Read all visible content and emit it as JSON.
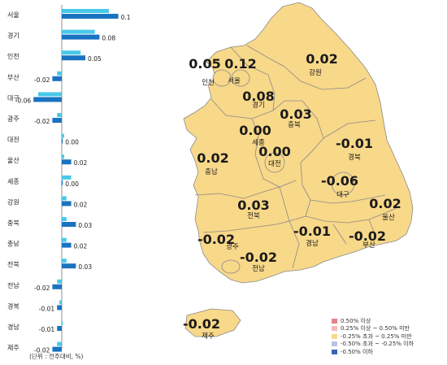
{
  "chart_data": {
    "type": "bar",
    "categories": [
      "서울",
      "경기",
      "인천",
      "부산",
      "대구",
      "광주",
      "대전",
      "울산",
      "세종",
      "강원",
      "충북",
      "충남",
      "전북",
      "전남",
      "경북",
      "경남",
      "제주"
    ],
    "series": [
      {
        "values": [
          0.12,
          0.08,
          0.05,
          -0.02,
          -0.06,
          -0.02,
          0.0,
          0.02,
          0.0,
          0.02,
          0.03,
          0.02,
          0.03,
          -0.02,
          -0.01,
          -0.01,
          -0.02
        ]
      }
    ],
    "previous_week_values": [
      0.1,
      0.07,
      0.04,
      -0.01,
      -0.05,
      -0.01,
      0.005,
      0.005,
      0.02,
      0.01,
      0.01,
      0.01,
      0.01,
      -0.01,
      -0.005,
      0.0,
      -0.01
    ],
    "unit_note": "(단위 : 전주대비, %)"
  },
  "map": {
    "regions": [
      {
        "id": "incheon",
        "name": "인천",
        "value": "0.05"
      },
      {
        "id": "seoul",
        "name": "서울",
        "value": "0.12"
      },
      {
        "id": "gangwon",
        "name": "강원",
        "value": "0.02"
      },
      {
        "id": "gyeonggi",
        "name": "경기",
        "value": "0.08"
      },
      {
        "id": "chungbuk",
        "name": "충북",
        "value": "0.03"
      },
      {
        "id": "sejong",
        "name": "세종",
        "value": "0.00"
      },
      {
        "id": "daejeon",
        "name": "대전",
        "value": "0.00"
      },
      {
        "id": "gyeongbuk",
        "name": "경북",
        "value": "-0.01"
      },
      {
        "id": "chungnam",
        "name": "충남",
        "value": "0.02"
      },
      {
        "id": "daegu",
        "name": "대구",
        "value": "-0.06"
      },
      {
        "id": "ulsan",
        "name": "울산",
        "value": "0.02"
      },
      {
        "id": "jeonbuk",
        "name": "전북",
        "value": "0.03"
      },
      {
        "id": "gwangju",
        "name": "광주",
        "value": "-0.02"
      },
      {
        "id": "gyeongnam",
        "name": "경남",
        "value": "-0.01"
      },
      {
        "id": "busan",
        "name": "부산",
        "value": "-0.02"
      },
      {
        "id": "jeonnam",
        "name": "전남",
        "value": "-0.02"
      },
      {
        "id": "jeju",
        "name": "제주",
        "value": "-0.02"
      }
    ],
    "fill_color": "#f8d889",
    "border_color": "#8a8a8a"
  },
  "legend": {
    "items": [
      {
        "label": "0.50% 이상",
        "color": "#e8808a"
      },
      {
        "label": "0.25% 이상 ~ 0.50% 미만",
        "color": "#f4b8bc"
      },
      {
        "label": "-0.25% 초과 ~ 0.25% 미만",
        "color": "#f8d889"
      },
      {
        "label": "-0.50% 초과 ~ -0.25% 이하",
        "color": "#b8c4e0"
      },
      {
        "label": "-0.50% 이하",
        "color": "#3d64b8"
      }
    ]
  },
  "colors": {
    "current_bar": "#1a73c0",
    "previous_bar": "#49c8e8"
  }
}
